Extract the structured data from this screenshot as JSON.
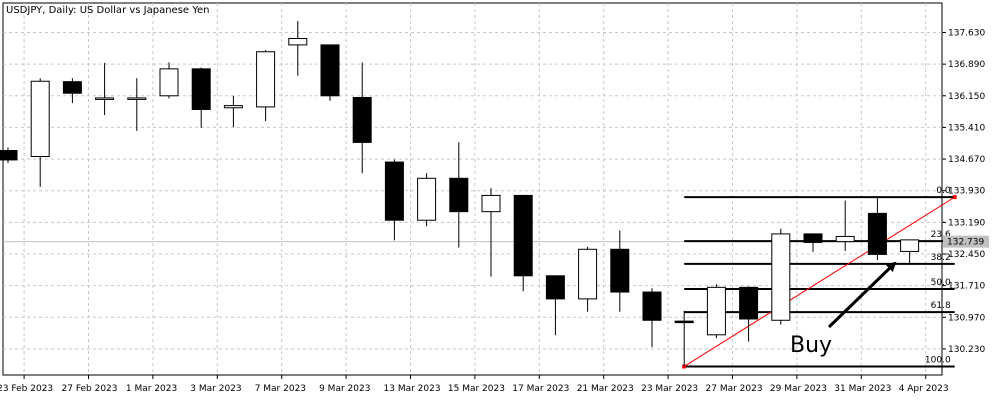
{
  "colors": {
    "bull_fill": "#ffffff",
    "bear_fill": "#000000",
    "grid": "#c8c8c8",
    "fib_line": "#000000",
    "trend_line": "#ff0000",
    "price_tag_bg": "#c0c0c0"
  },
  "chart_data": {
    "type": "candlestick",
    "title": "USDJPY, Daily:  US Dollar vs Japanese Yen",
    "y_ticks": [
      "137.630",
      "136.890",
      "136.150",
      "135.410",
      "134.670",
      "133.930",
      "133.190",
      "132.450",
      "131.710",
      "130.970",
      "130.230"
    ],
    "y_range": [
      129.62,
      138.32
    ],
    "current_price": "132.739",
    "x_labels": [
      "23 Feb 2023",
      "27 Feb 2023",
      "1 Mar 2023",
      "3 Mar 2023",
      "7 Mar 2023",
      "9 Mar 2023",
      "13 Mar 2023",
      "15 Mar 2023",
      "17 Mar 2023",
      "21 Mar 2023",
      "23 Mar 2023",
      "27 Mar 2023",
      "29 Mar 2023",
      "31 Mar 2023",
      "4 Apr 2023"
    ],
    "candles": [
      {
        "o": 134.87,
        "h": 134.94,
        "l": 134.58,
        "c": 134.65
      },
      {
        "o": 134.73,
        "h": 136.56,
        "l": 134.02,
        "c": 136.49
      },
      {
        "o": 136.48,
        "h": 136.56,
        "l": 135.98,
        "c": 136.21
      },
      {
        "o": 136.1,
        "h": 136.92,
        "l": 135.7,
        "c": 136.1
      },
      {
        "o": 136.08,
        "h": 136.56,
        "l": 135.33,
        "c": 136.1
      },
      {
        "o": 136.15,
        "h": 136.93,
        "l": 136.09,
        "c": 136.78
      },
      {
        "o": 136.78,
        "h": 136.81,
        "l": 135.4,
        "c": 135.83
      },
      {
        "o": 135.87,
        "h": 136.15,
        "l": 135.42,
        "c": 135.92
      },
      {
        "o": 135.89,
        "h": 137.22,
        "l": 135.56,
        "c": 137.18
      },
      {
        "o": 137.34,
        "h": 137.9,
        "l": 136.62,
        "c": 137.49
      },
      {
        "o": 137.34,
        "h": 137.34,
        "l": 136.03,
        "c": 136.15
      },
      {
        "o": 136.11,
        "h": 136.93,
        "l": 134.34,
        "c": 135.06
      },
      {
        "o": 134.6,
        "h": 134.66,
        "l": 132.77,
        "c": 133.24
      },
      {
        "o": 133.24,
        "h": 134.34,
        "l": 133.1,
        "c": 134.22
      },
      {
        "o": 134.22,
        "h": 135.06,
        "l": 132.6,
        "c": 133.44
      },
      {
        "o": 133.44,
        "h": 133.99,
        "l": 131.92,
        "c": 133.82
      },
      {
        "o": 133.82,
        "h": 133.82,
        "l": 131.58,
        "c": 131.94
      },
      {
        "o": 131.94,
        "h": 131.94,
        "l": 130.55,
        "c": 131.4
      },
      {
        "o": 131.4,
        "h": 132.62,
        "l": 131.1,
        "c": 132.56
      },
      {
        "o": 132.56,
        "h": 133.0,
        "l": 131.1,
        "c": 131.56
      },
      {
        "o": 131.56,
        "h": 131.65,
        "l": 130.27,
        "c": 130.9
      },
      {
        "o": 130.88,
        "h": 131.12,
        "l": 129.82,
        "c": 130.85
      },
      {
        "o": 130.56,
        "h": 131.74,
        "l": 130.48,
        "c": 131.67
      },
      {
        "o": 131.67,
        "h": 131.69,
        "l": 130.4,
        "c": 130.93
      },
      {
        "o": 130.9,
        "h": 133.04,
        "l": 130.8,
        "c": 132.92
      },
      {
        "o": 132.92,
        "h": 132.93,
        "l": 132.5,
        "c": 132.72
      },
      {
        "o": 132.74,
        "h": 133.7,
        "l": 132.52,
        "c": 132.86
      },
      {
        "o": 133.4,
        "h": 133.78,
        "l": 132.31,
        "c": 132.44
      },
      {
        "o": 132.51,
        "h": 132.78,
        "l": 132.22,
        "c": 132.78
      }
    ],
    "fibonacci": {
      "levels": [
        {
          "label": "0.0",
          "price": 133.78
        },
        {
          "label": "23.6",
          "price": 132.75
        },
        {
          "label": "38.2",
          "price": 132.22
        },
        {
          "label": "50.0",
          "price": 131.63
        },
        {
          "label": "61.8",
          "price": 131.09
        },
        {
          "label": "100.0",
          "price": 129.82
        }
      ],
      "start_index": 21,
      "end_index": 29.4
    },
    "annotation": {
      "text": "Buy"
    }
  }
}
